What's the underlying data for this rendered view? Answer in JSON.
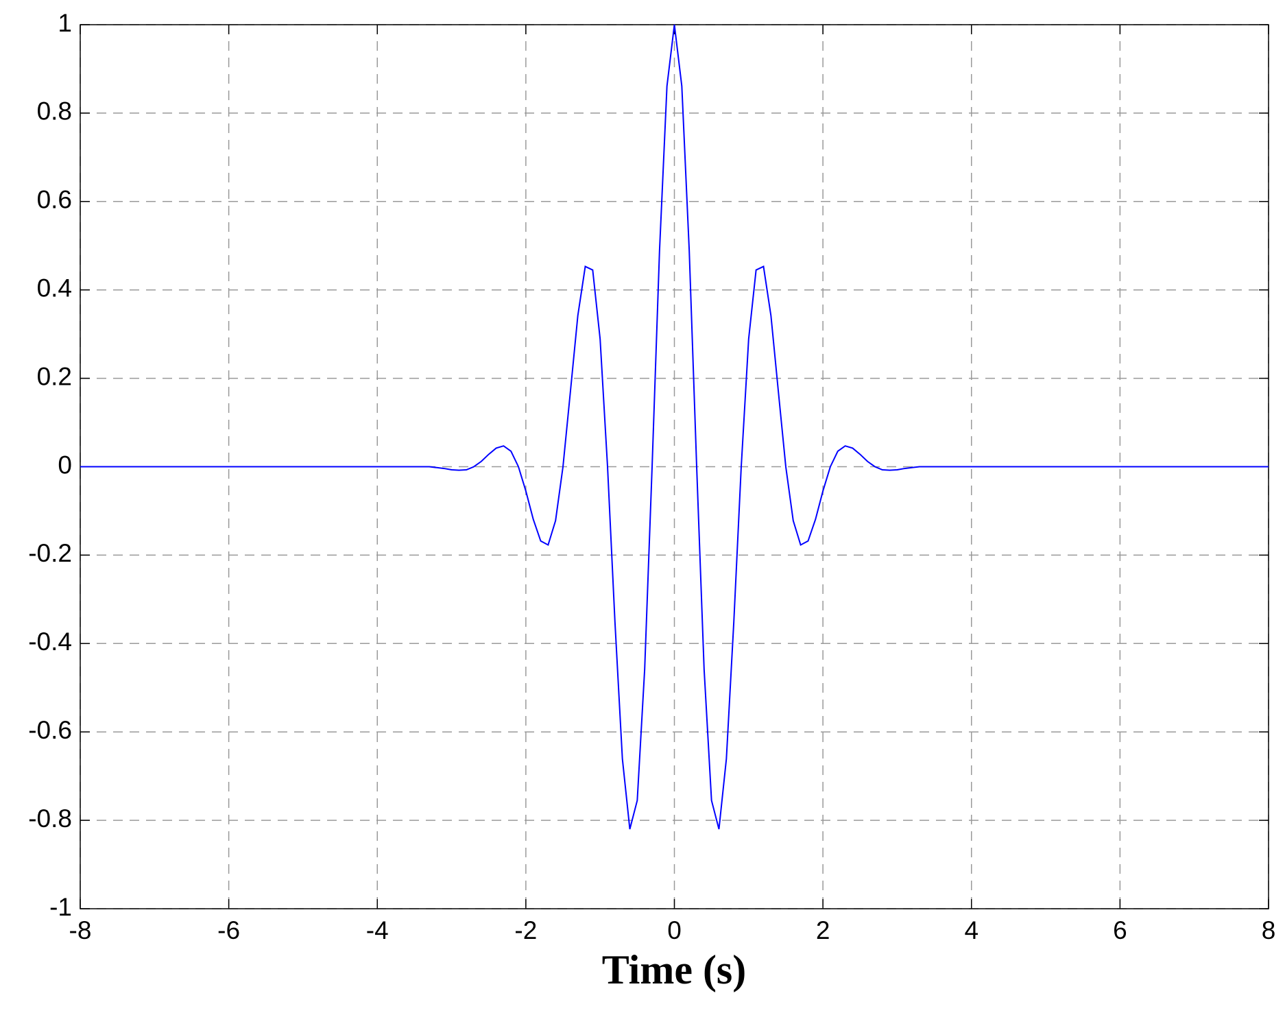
{
  "chart_data": {
    "type": "line",
    "xlabel": "Time (s)",
    "x": [
      -8,
      -3.3,
      -3.2,
      -3.1,
      -3.0,
      -2.9,
      -2.8,
      -2.7,
      -2.6,
      -2.5,
      -2.4,
      -2.3,
      -2.2,
      -2.1,
      -2.0,
      -1.9,
      -1.8,
      -1.7,
      -1.6,
      -1.5,
      -1.4,
      -1.3,
      -1.2,
      -1.1,
      -1.0,
      -0.9,
      -0.8,
      -0.7,
      -0.6,
      -0.5,
      -0.4,
      -0.3,
      -0.2,
      -0.1,
      0,
      0.1,
      0.2,
      0.3,
      0.4,
      0.5,
      0.6,
      0.7,
      0.8,
      0.9,
      1.0,
      1.1,
      1.2,
      1.3,
      1.4,
      1.5,
      1.6,
      1.7,
      1.8,
      1.9,
      2.0,
      2.1,
      2.2,
      2.3,
      2.4,
      2.5,
      2.6,
      2.7,
      2.8,
      2.9,
      3.0,
      3.1,
      3.2,
      3.3,
      8
    ],
    "series": [
      {
        "color": "#0000ff",
        "values": [
          0,
          0,
          -0.002,
          -0.004,
          -0.007,
          -0.008,
          -0.007,
          0,
          0.012,
          0.028,
          0.042,
          0.047,
          0.035,
          0,
          -0.055,
          -0.119,
          -0.168,
          -0.177,
          -0.122,
          0,
          0.17,
          0.342,
          0.453,
          0.445,
          0.289,
          0,
          -0.352,
          -0.661,
          -0.82,
          -0.755,
          -0.458,
          0,
          0.489,
          0.861,
          1,
          0.861,
          0.489,
          0,
          -0.458,
          -0.755,
          -0.82,
          -0.661,
          -0.352,
          0,
          0.289,
          0.445,
          0.453,
          0.342,
          0.17,
          0,
          -0.122,
          -0.177,
          -0.168,
          -0.119,
          -0.055,
          0,
          0.035,
          0.047,
          0.042,
          0.028,
          0.012,
          0,
          -0.007,
          -0.008,
          -0.007,
          -0.004,
          -0.002,
          0,
          0
        ]
      }
    ],
    "xlim": [
      -8,
      8
    ],
    "ylim": [
      -1,
      1
    ],
    "xticks": [
      -8,
      -6,
      -4,
      -2,
      0,
      2,
      4,
      6,
      8
    ],
    "yticks": [
      -1,
      -0.8,
      -0.6,
      -0.4,
      -0.2,
      0,
      0.2,
      0.4,
      0.6,
      0.8,
      1
    ],
    "grid": true
  }
}
